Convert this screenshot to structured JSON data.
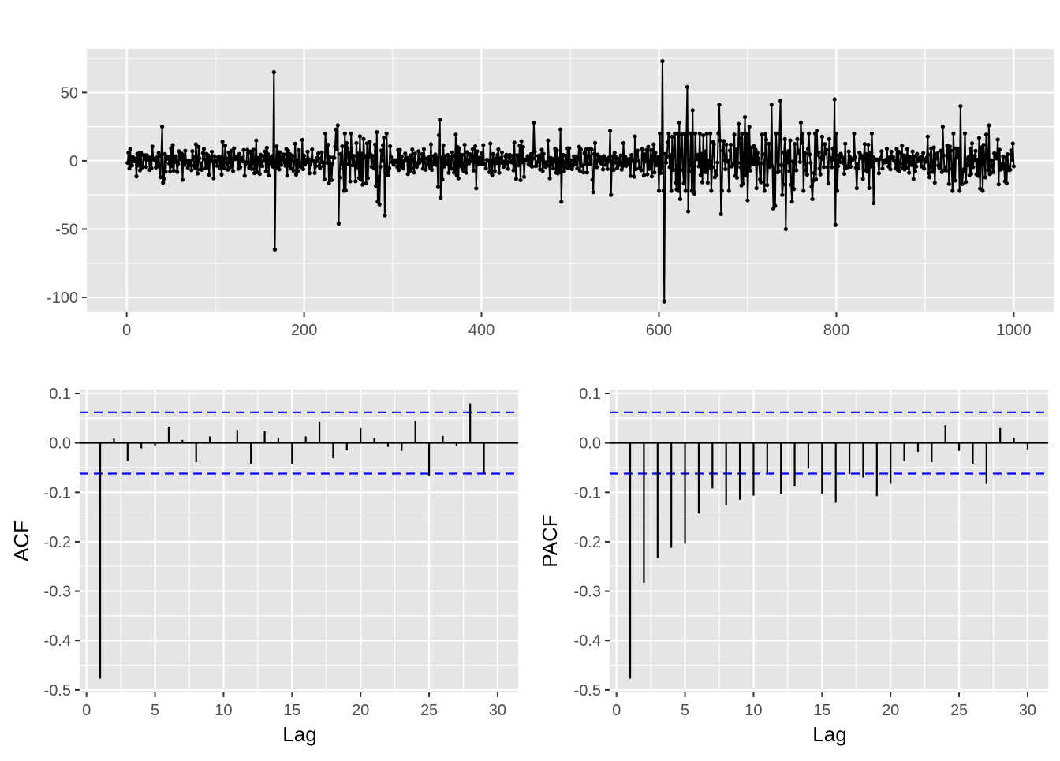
{
  "chart_data": [
    {
      "type": "line",
      "panel": "top",
      "title": "",
      "xlabel": "",
      "ylabel": "",
      "xlim": [
        -45,
        1045
      ],
      "ylim": [
        -111,
        82
      ],
      "xticks": [
        0,
        200,
        400,
        600,
        800,
        1000
      ],
      "xtick_labels": [
        "0",
        "200",
        "400",
        "600",
        "800",
        "1000"
      ],
      "yticks": [
        -100,
        -50,
        0,
        50
      ],
      "ytick_labels": [
        "-100",
        "-50",
        "0",
        "50"
      ],
      "grid": true,
      "markers": true,
      "n_points": 1000,
      "x": [
        1,
        1000
      ],
      "noise_sd": 5,
      "spikes": [
        {
          "x": 40,
          "y": 25
        },
        {
          "x": 41,
          "y": -16
        },
        {
          "x": 166,
          "y": 65
        },
        {
          "x": 167,
          "y": -65
        },
        {
          "x": 236,
          "y": 23
        },
        {
          "x": 238,
          "y": 26
        },
        {
          "x": 239,
          "y": -46
        },
        {
          "x": 282,
          "y": 21
        },
        {
          "x": 283,
          "y": -30
        },
        {
          "x": 285,
          "y": -32
        },
        {
          "x": 290,
          "y": 17
        },
        {
          "x": 291,
          "y": -40
        },
        {
          "x": 353,
          "y": 30
        },
        {
          "x": 354,
          "y": -27
        },
        {
          "x": 459,
          "y": 28
        },
        {
          "x": 489,
          "y": 23
        },
        {
          "x": 490,
          "y": -30
        },
        {
          "x": 526,
          "y": -23
        },
        {
          "x": 545,
          "y": 22
        },
        {
          "x": 546,
          "y": -25
        },
        {
          "x": 604,
          "y": 73
        },
        {
          "x": 606,
          "y": -103
        },
        {
          "x": 611,
          "y": 20
        },
        {
          "x": 620,
          "y": -21
        },
        {
          "x": 623,
          "y": 28
        },
        {
          "x": 624,
          "y": -28
        },
        {
          "x": 632,
          "y": 54
        },
        {
          "x": 633,
          "y": -37
        },
        {
          "x": 638,
          "y": 37
        },
        {
          "x": 640,
          "y": -24
        },
        {
          "x": 668,
          "y": 41
        },
        {
          "x": 670,
          "y": -39
        },
        {
          "x": 690,
          "y": 27
        },
        {
          "x": 697,
          "y": 32
        },
        {
          "x": 700,
          "y": -29
        },
        {
          "x": 702,
          "y": 25
        },
        {
          "x": 710,
          "y": -20
        },
        {
          "x": 727,
          "y": 41
        },
        {
          "x": 729,
          "y": -35
        },
        {
          "x": 731,
          "y": -33
        },
        {
          "x": 737,
          "y": 44
        },
        {
          "x": 739,
          "y": -25
        },
        {
          "x": 743,
          "y": -50
        },
        {
          "x": 750,
          "y": -30
        },
        {
          "x": 760,
          "y": 28
        },
        {
          "x": 773,
          "y": -28
        },
        {
          "x": 778,
          "y": 22
        },
        {
          "x": 798,
          "y": 45
        },
        {
          "x": 799,
          "y": -47
        },
        {
          "x": 820,
          "y": 20
        },
        {
          "x": 823,
          "y": -20
        },
        {
          "x": 840,
          "y": 20
        },
        {
          "x": 842,
          "y": -31
        },
        {
          "x": 920,
          "y": 25
        },
        {
          "x": 940,
          "y": 40
        },
        {
          "x": 942,
          "y": -17
        },
        {
          "x": 972,
          "y": 26
        },
        {
          "x": 990,
          "y": -15
        }
      ],
      "bursts": [
        {
          "from": 220,
          "to": 300,
          "sd": 10
        },
        {
          "from": 600,
          "to": 800,
          "sd": 13
        },
        {
          "from": 900,
          "to": 1000,
          "sd": 8
        }
      ]
    },
    {
      "type": "bar",
      "panel": "bottom-left",
      "title": "",
      "xlabel": "Lag",
      "ylabel": "ACF",
      "xlim": [
        -0.5,
        31.5
      ],
      "ylim": [
        -0.505,
        0.108
      ],
      "xticks": [
        0,
        5,
        10,
        15,
        20,
        25,
        30
      ],
      "xtick_labels": [
        "0",
        "5",
        "10",
        "15",
        "20",
        "25",
        "30"
      ],
      "yticks": [
        -0.5,
        -0.4,
        -0.3,
        -0.2,
        -0.1,
        0.0,
        0.1
      ],
      "ytick_labels": [
        "-0.5",
        "-0.4",
        "-0.3",
        "-0.2",
        "-0.1",
        "0.0",
        "0.1"
      ],
      "grid": true,
      "confidence_bounds": [
        0.062,
        -0.062
      ],
      "confidence_color": "#0000ff",
      "lags": [
        1,
        2,
        3,
        4,
        5,
        6,
        7,
        8,
        9,
        10,
        11,
        12,
        13,
        14,
        15,
        16,
        17,
        18,
        19,
        20,
        21,
        22,
        23,
        24,
        25,
        26,
        27,
        28,
        29,
        30
      ],
      "values": [
        -0.477,
        0.009,
        -0.036,
        -0.011,
        -0.006,
        0.033,
        0.006,
        -0.039,
        0.013,
        0.0,
        0.026,
        -0.042,
        0.024,
        0.01,
        -0.042,
        0.013,
        0.043,
        -0.031,
        -0.015,
        0.03,
        0.01,
        -0.008,
        -0.016,
        0.044,
        -0.067,
        0.014,
        -0.006,
        0.08,
        -0.062,
        0.0
      ]
    },
    {
      "type": "bar",
      "panel": "bottom-right",
      "title": "",
      "xlabel": "Lag",
      "ylabel": "PACF",
      "xlim": [
        -0.5,
        31.5
      ],
      "ylim": [
        -0.505,
        0.108
      ],
      "xticks": [
        0,
        5,
        10,
        15,
        20,
        25,
        30
      ],
      "xtick_labels": [
        "0",
        "5",
        "10",
        "15",
        "20",
        "25",
        "30"
      ],
      "yticks": [
        -0.5,
        -0.4,
        -0.3,
        -0.2,
        -0.1,
        0.0,
        0.1
      ],
      "ytick_labels": [
        "-0.5",
        "-0.4",
        "-0.3",
        "-0.2",
        "-0.1",
        "0.0",
        "0.1"
      ],
      "grid": true,
      "confidence_bounds": [
        0.062,
        -0.062
      ],
      "confidence_color": "#0000ff",
      "lags": [
        1,
        2,
        3,
        4,
        5,
        6,
        7,
        8,
        9,
        10,
        11,
        12,
        13,
        14,
        15,
        16,
        17,
        18,
        19,
        20,
        21,
        22,
        23,
        24,
        25,
        26,
        27,
        28,
        29,
        30
      ],
      "values": [
        -0.477,
        -0.283,
        -0.233,
        -0.212,
        -0.204,
        -0.143,
        -0.092,
        -0.125,
        -0.115,
        -0.107,
        -0.06,
        -0.103,
        -0.087,
        -0.052,
        -0.103,
        -0.121,
        -0.063,
        -0.07,
        -0.108,
        -0.083,
        -0.036,
        -0.018,
        -0.039,
        0.036,
        -0.016,
        -0.042,
        -0.083,
        0.03,
        0.01,
        -0.013
      ]
    }
  ],
  "colors": {
    "panel_background": "#e5e5e5",
    "gridline": "#ffffff",
    "series": "#000000",
    "tick_text": "#4d4d4d",
    "confidence": "#0000ff"
  }
}
